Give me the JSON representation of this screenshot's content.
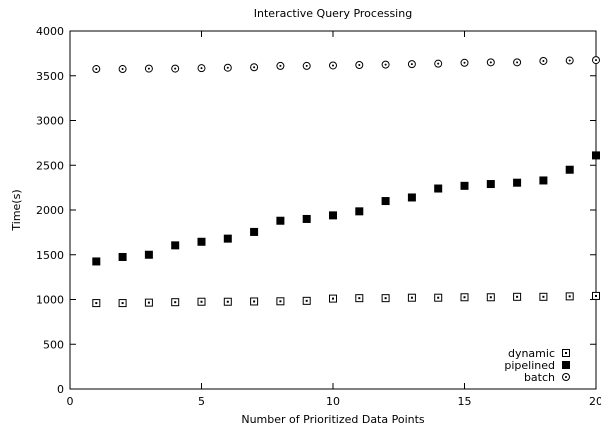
{
  "chart_data": {
    "type": "scatter",
    "title": "Interactive Query Processing",
    "xlabel": "Number of Prioritized Data Points",
    "ylabel": "Time(s)",
    "xlim": [
      0,
      20
    ],
    "ylim": [
      0,
      4000
    ],
    "xticks": [
      "0",
      "5",
      "10",
      "15",
      "20"
    ],
    "yticks": [
      "0",
      "500",
      "1000",
      "1500",
      "2000",
      "2500",
      "3000",
      "3500",
      "4000"
    ],
    "grid": false,
    "legend_position": "bottom-right",
    "series": [
      {
        "name": "dynamic",
        "marker": "square-dot",
        "x": [
          1,
          2,
          3,
          4,
          5,
          6,
          7,
          8,
          9,
          10,
          11,
          12,
          13,
          14,
          15,
          16,
          17,
          18,
          19,
          20
        ],
        "y": [
          960,
          960,
          965,
          970,
          975,
          975,
          978,
          980,
          985,
          1010,
          1015,
          1015,
          1020,
          1020,
          1025,
          1025,
          1030,
          1030,
          1035,
          1040
        ]
      },
      {
        "name": "pipelined",
        "marker": "filled-square",
        "x": [
          1,
          2,
          3,
          4,
          5,
          6,
          7,
          8,
          9,
          10,
          11,
          12,
          13,
          14,
          15,
          16,
          17,
          18,
          19,
          20
        ],
        "y": [
          1425,
          1475,
          1500,
          1605,
          1645,
          1680,
          1755,
          1880,
          1900,
          1940,
          1985,
          2100,
          2140,
          2240,
          2270,
          2290,
          2305,
          2330,
          2450,
          2610
        ]
      },
      {
        "name": "batch",
        "marker": "circle-dot",
        "x": [
          1,
          2,
          3,
          4,
          5,
          6,
          7,
          8,
          9,
          10,
          11,
          12,
          13,
          14,
          15,
          16,
          17,
          18,
          19,
          20
        ],
        "y": [
          3575,
          3575,
          3580,
          3580,
          3585,
          3590,
          3595,
          3610,
          3610,
          3615,
          3620,
          3625,
          3630,
          3635,
          3645,
          3650,
          3650,
          3665,
          3670,
          3675
        ]
      }
    ]
  }
}
